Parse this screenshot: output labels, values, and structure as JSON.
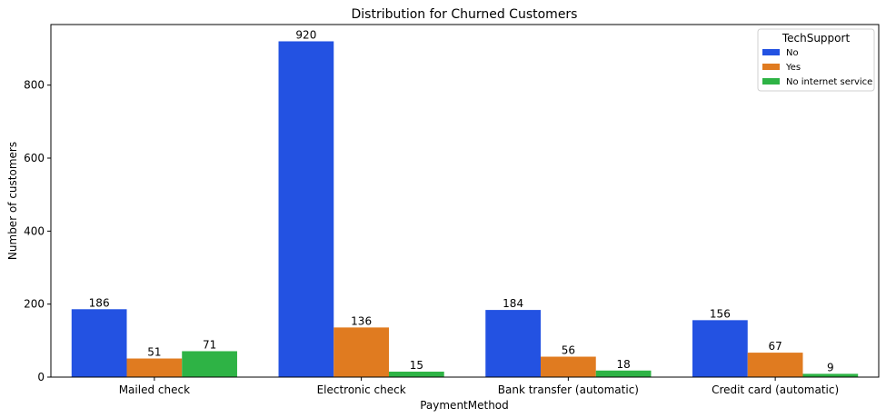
{
  "chart_data": {
    "type": "bar",
    "title": "Distribution for Churned Customers",
    "xlabel": "PaymentMethod",
    "ylabel": "Number of customers",
    "categories": [
      "Mailed check",
      "Electronic check",
      "Bank transfer (automatic)",
      "Credit card (automatic)"
    ],
    "series": [
      {
        "name": "No",
        "values": [
          186,
          920,
          184,
          156
        ],
        "color": "#2352e2"
      },
      {
        "name": "Yes",
        "values": [
          51,
          136,
          56,
          67
        ],
        "color": "#e07b20"
      },
      {
        "name": "No internet service",
        "values": [
          71,
          15,
          18,
          9
        ],
        "color": "#2eb345"
      }
    ],
    "ylim": [
      0,
      966
    ],
    "yticks": [
      0,
      200,
      400,
      600,
      800
    ],
    "legend": {
      "title": "TechSupport",
      "placement": "top-right"
    },
    "grid": false
  }
}
